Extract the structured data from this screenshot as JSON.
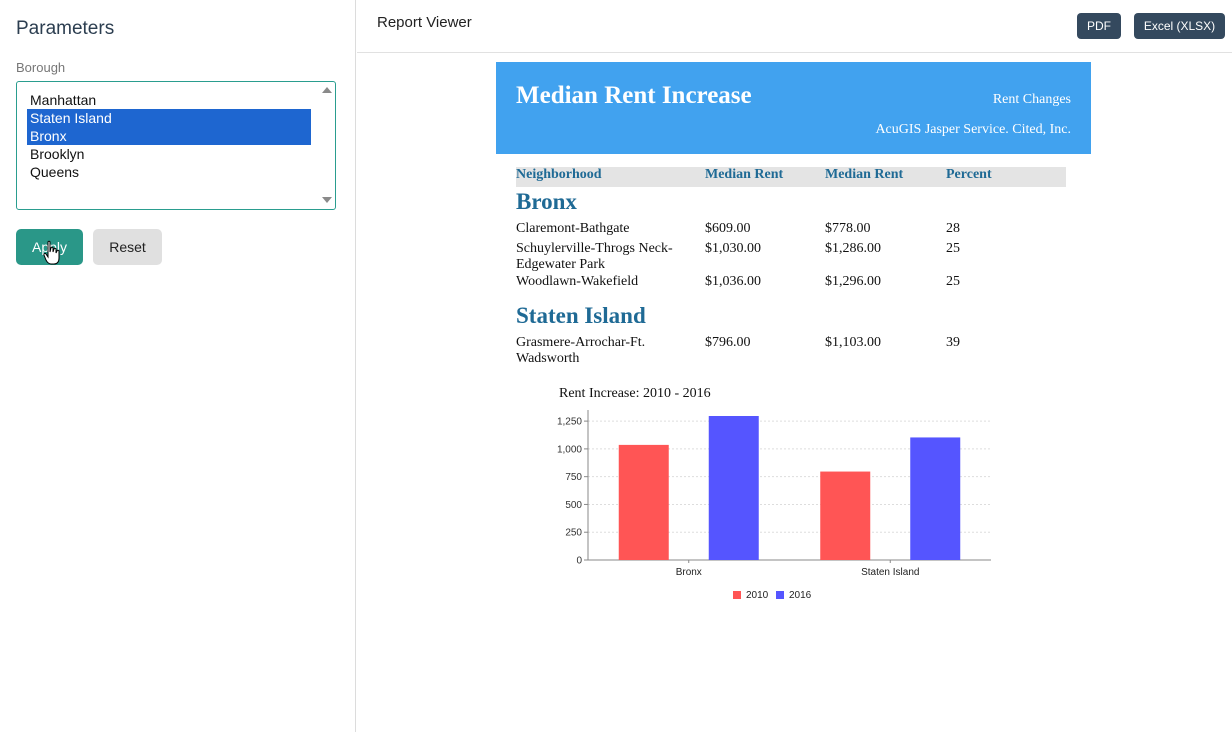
{
  "sidebar": {
    "title": "Parameters",
    "borough_label": "Borough",
    "options": [
      {
        "label": "Manhattan",
        "selected": false
      },
      {
        "label": "Staten Island",
        "selected": true
      },
      {
        "label": "Bronx",
        "selected": true
      },
      {
        "label": "Brooklyn",
        "selected": false
      },
      {
        "label": "Queens",
        "selected": false
      }
    ],
    "apply_label": "Apply",
    "reset_label": "Reset"
  },
  "topbar": {
    "title": "Report Viewer",
    "pdf_label": "PDF",
    "xlsx_label": "Excel (XLSX)"
  },
  "report": {
    "title": "Median Rent Increase",
    "subtitle": "Rent Changes",
    "credit": "AcuGIS Jasper Service. Cited, Inc.",
    "columns": [
      "Neighborhood",
      "Median Rent",
      "Median Rent",
      "Percent"
    ],
    "groups": [
      {
        "name": "Bronx",
        "rows": [
          {
            "neighborhood": "Claremont-Bathgate",
            "rent_2010": "$609.00",
            "rent_2016": "$778.00",
            "percent": "28"
          },
          {
            "neighborhood": "Schuylerville-Throgs Neck-Edgewater Park",
            "rent_2010": "$1,030.00",
            "rent_2016": "$1,286.00",
            "percent": "25"
          },
          {
            "neighborhood": "Woodlawn-Wakefield",
            "rent_2010": "$1,036.00",
            "rent_2016": "$1,296.00",
            "percent": "25"
          }
        ]
      },
      {
        "name": "Staten Island",
        "rows": [
          {
            "neighborhood": "Grasmere-Arrochar-Ft. Wadsworth",
            "rent_2010": "$796.00",
            "rent_2016": "$1,103.00",
            "percent": "39"
          }
        ]
      }
    ],
    "chart_title": "Rent Increase:  2010 - 2016"
  },
  "colors": {
    "series_2010": "#ff5555",
    "series_2016": "#5555ff",
    "banner": "#41a2ef",
    "heading": "#1f6a95"
  },
  "chart_data": {
    "type": "bar",
    "title": "Rent Increase:  2010 - 2016",
    "categories": [
      "Bronx",
      "Staten Island"
    ],
    "series": [
      {
        "name": "2010",
        "values": [
          1036,
          796
        ]
      },
      {
        "name": "2016",
        "values": [
          1296,
          1103
        ]
      }
    ],
    "yticks": [
      "0",
      "250",
      "500",
      "750",
      "1,000",
      "1,250"
    ],
    "ylim": [
      0,
      1350
    ],
    "grid": true,
    "legend": "bottom"
  }
}
